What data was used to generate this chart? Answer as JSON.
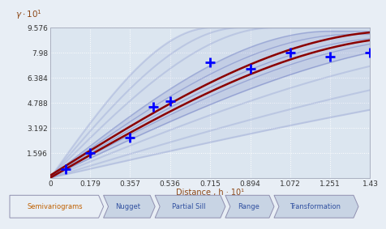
{
  "ylabel": "γ · 10¹",
  "xlabel": "Distance , h · 10¹",
  "ylim": [
    0,
    9.576
  ],
  "xlim": [
    0,
    1.43
  ],
  "yticks": [
    1.596,
    3.192,
    4.788,
    6.384,
    7.98,
    9.576
  ],
  "xticks": [
    0,
    0.179,
    0.357,
    0.536,
    0.715,
    0.894,
    1.072,
    1.251,
    1.43
  ],
  "bg_color": "#e8eef5",
  "plot_bg": "#dce6f0",
  "grid_color": "#ffffff",
  "markers_x": [
    0.07,
    0.179,
    0.357,
    0.46,
    0.536,
    0.715,
    0.894,
    1.072,
    1.251,
    1.43
  ],
  "markers_y": [
    0.55,
    1.596,
    2.55,
    4.55,
    4.9,
    7.35,
    6.95,
    7.98,
    7.7,
    7.98
  ],
  "center_curve_color": "#8b0000",
  "band_color": "#5060b8",
  "tab_labels": [
    "Semivariograms",
    "Nugget",
    "Partial Sill",
    "Range",
    "Transformation"
  ],
  "tab_bg": "#c8d4e4",
  "tab_active_bg": "#e8eef5",
  "tab_active_text": "#c06000",
  "tab_inactive_text": "#3050a0"
}
